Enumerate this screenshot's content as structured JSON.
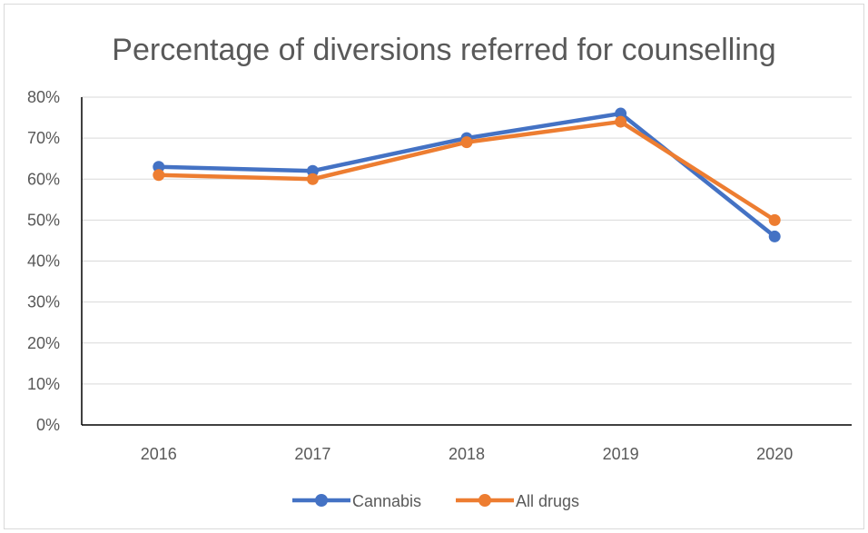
{
  "chart_data": {
    "type": "line",
    "title": "Percentage of diversions referred for counselling",
    "xlabel": "",
    "ylabel": "",
    "categories": [
      "2016",
      "2017",
      "2018",
      "2019",
      "2020"
    ],
    "series": [
      {
        "name": "Cannabis",
        "color": "#4472c4",
        "values": [
          0.63,
          0.62,
          0.7,
          0.76,
          0.46
        ]
      },
      {
        "name": "All drugs",
        "color": "#ed7d31",
        "values": [
          0.61,
          0.6,
          0.69,
          0.74,
          0.5
        ]
      }
    ],
    "ylim": [
      0,
      0.8
    ],
    "yticks": [
      "0%",
      "10%",
      "20%",
      "30%",
      "40%",
      "50%",
      "60%",
      "70%",
      "80%"
    ],
    "grid": true,
    "legend": "bottom"
  }
}
